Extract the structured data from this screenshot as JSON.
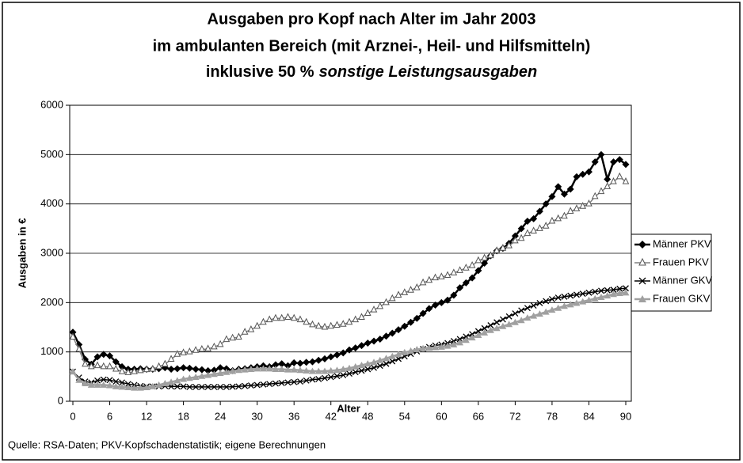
{
  "chart_data": {
    "type": "line",
    "title_lines": [
      "Ausgaben pro Kopf nach Alter im Jahr 2003",
      "im ambulanten Bereich (mit Arznei-, Heil- und Hilfsmitteln)",
      [
        "inklusive 50 %",
        "sonstige Leistungsausgaben"
      ]
    ],
    "x_label": "Alter",
    "y_label": "Ausgaben in €",
    "source": "Quelle: RSA-Daten; PKV-Kopfschadenstatistik; eigene Berechnungen",
    "xlim": [
      0,
      90
    ],
    "xticks": [
      0,
      6,
      12,
      18,
      24,
      30,
      36,
      42,
      48,
      54,
      60,
      66,
      72,
      78,
      84,
      90
    ],
    "ylim": [
      0,
      6000
    ],
    "yticks": [
      0,
      1000,
      2000,
      3000,
      4000,
      5000,
      6000
    ],
    "grid": true,
    "legend": "right",
    "x": [
      0,
      1,
      2,
      3,
      4,
      5,
      6,
      7,
      8,
      9,
      10,
      11,
      12,
      13,
      14,
      15,
      16,
      17,
      18,
      19,
      20,
      21,
      22,
      23,
      24,
      25,
      26,
      27,
      28,
      29,
      30,
      31,
      32,
      33,
      34,
      35,
      36,
      37,
      38,
      39,
      40,
      41,
      42,
      43,
      44,
      45,
      46,
      47,
      48,
      49,
      50,
      51,
      52,
      53,
      54,
      55,
      56,
      57,
      58,
      59,
      60,
      61,
      62,
      63,
      64,
      65,
      66,
      67,
      68,
      69,
      70,
      71,
      72,
      73,
      74,
      75,
      76,
      77,
      78,
      79,
      80,
      81,
      82,
      83,
      84,
      85,
      86,
      87,
      88,
      89,
      90
    ],
    "series": [
      {
        "name": "Männer PKV",
        "color": "#000000",
        "marker": "diamond",
        "values": [
          1400,
          1150,
          850,
          750,
          900,
          950,
          920,
          800,
          700,
          650,
          650,
          660,
          650,
          650,
          660,
          680,
          650,
          660,
          680,
          670,
          650,
          640,
          620,
          630,
          680,
          660,
          620,
          650,
          660,
          680,
          700,
          720,
          700,
          740,
          760,
          720,
          780,
          770,
          790,
          800,
          830,
          860,
          900,
          940,
          980,
          1040,
          1080,
          1130,
          1180,
          1220,
          1260,
          1320,
          1380,
          1450,
          1520,
          1600,
          1680,
          1780,
          1880,
          1950,
          2000,
          2050,
          2150,
          2300,
          2400,
          2500,
          2650,
          2800,
          2950,
          3050,
          3100,
          3200,
          3350,
          3500,
          3650,
          3700,
          3850,
          4000,
          4150,
          4350,
          4200,
          4300,
          4550,
          4600,
          4650,
          4850,
          5000,
          4500,
          4850,
          4900,
          4800
        ]
      },
      {
        "name": "Frauen PKV",
        "color": "#808080",
        "marker": "triangle-open",
        "values": [
          1300,
          1050,
          750,
          700,
          720,
          700,
          700,
          650,
          600,
          580,
          600,
          620,
          640,
          650,
          700,
          750,
          850,
          950,
          980,
          1000,
          1030,
          1050,
          1060,
          1100,
          1150,
          1250,
          1280,
          1300,
          1400,
          1450,
          1520,
          1600,
          1650,
          1680,
          1680,
          1700,
          1680,
          1650,
          1600,
          1550,
          1520,
          1500,
          1520,
          1540,
          1560,
          1600,
          1650,
          1700,
          1780,
          1850,
          1920,
          2000,
          2080,
          2150,
          2200,
          2250,
          2300,
          2400,
          2450,
          2500,
          2520,
          2550,
          2600,
          2650,
          2700,
          2750,
          2850,
          2900,
          2950,
          3050,
          3100,
          3150,
          3250,
          3300,
          3400,
          3450,
          3500,
          3550,
          3650,
          3700,
          3750,
          3850,
          3900,
          3950,
          4000,
          4150,
          4250,
          4350,
          4450,
          4550,
          4450
        ]
      },
      {
        "name": "Männer GKV",
        "color": "#000000",
        "marker": "cross",
        "values": [
          600,
          480,
          400,
          380,
          420,
          440,
          430,
          400,
          380,
          350,
          330,
          310,
          300,
          300,
          300,
          310,
          300,
          300,
          300,
          290,
          290,
          290,
          290,
          290,
          290,
          290,
          295,
          300,
          310,
          320,
          330,
          340,
          350,
          360,
          370,
          380,
          390,
          400,
          420,
          440,
          450,
          470,
          490,
          510,
          530,
          560,
          590,
          620,
          650,
          680,
          720,
          760,
          810,
          860,
          910,
          960,
          1010,
          1060,
          1100,
          1130,
          1150,
          1180,
          1220,
          1260,
          1310,
          1360,
          1420,
          1480,
          1540,
          1600,
          1660,
          1720,
          1780,
          1840,
          1890,
          1940,
          1990,
          2030,
          2070,
          2100,
          2120,
          2140,
          2160,
          2180,
          2200,
          2220,
          2240,
          2250,
          2260,
          2280,
          2290
        ]
      },
      {
        "name": "Frauen GKV",
        "color": "#a0a0a0",
        "marker": "triangle",
        "values": [
          600,
          430,
          360,
          330,
          330,
          330,
          320,
          300,
          290,
          280,
          270,
          270,
          280,
          300,
          330,
          360,
          390,
          420,
          450,
          470,
          490,
          510,
          530,
          550,
          570,
          590,
          610,
          630,
          640,
          650,
          660,
          660,
          660,
          650,
          650,
          640,
          640,
          630,
          620,
          610,
          610,
          610,
          620,
          630,
          650,
          670,
          700,
          730,
          760,
          790,
          830,
          870,
          910,
          950,
          990,
          1020,
          1050,
          1070,
          1080,
          1090,
          1100,
          1120,
          1150,
          1190,
          1240,
          1290,
          1340,
          1390,
          1440,
          1480,
          1520,
          1560,
          1600,
          1640,
          1690,
          1730,
          1770,
          1810,
          1850,
          1890,
          1930,
          1960,
          1990,
          2020,
          2050,
          2080,
          2110,
          2140,
          2170,
          2190,
          2200
        ]
      }
    ]
  }
}
